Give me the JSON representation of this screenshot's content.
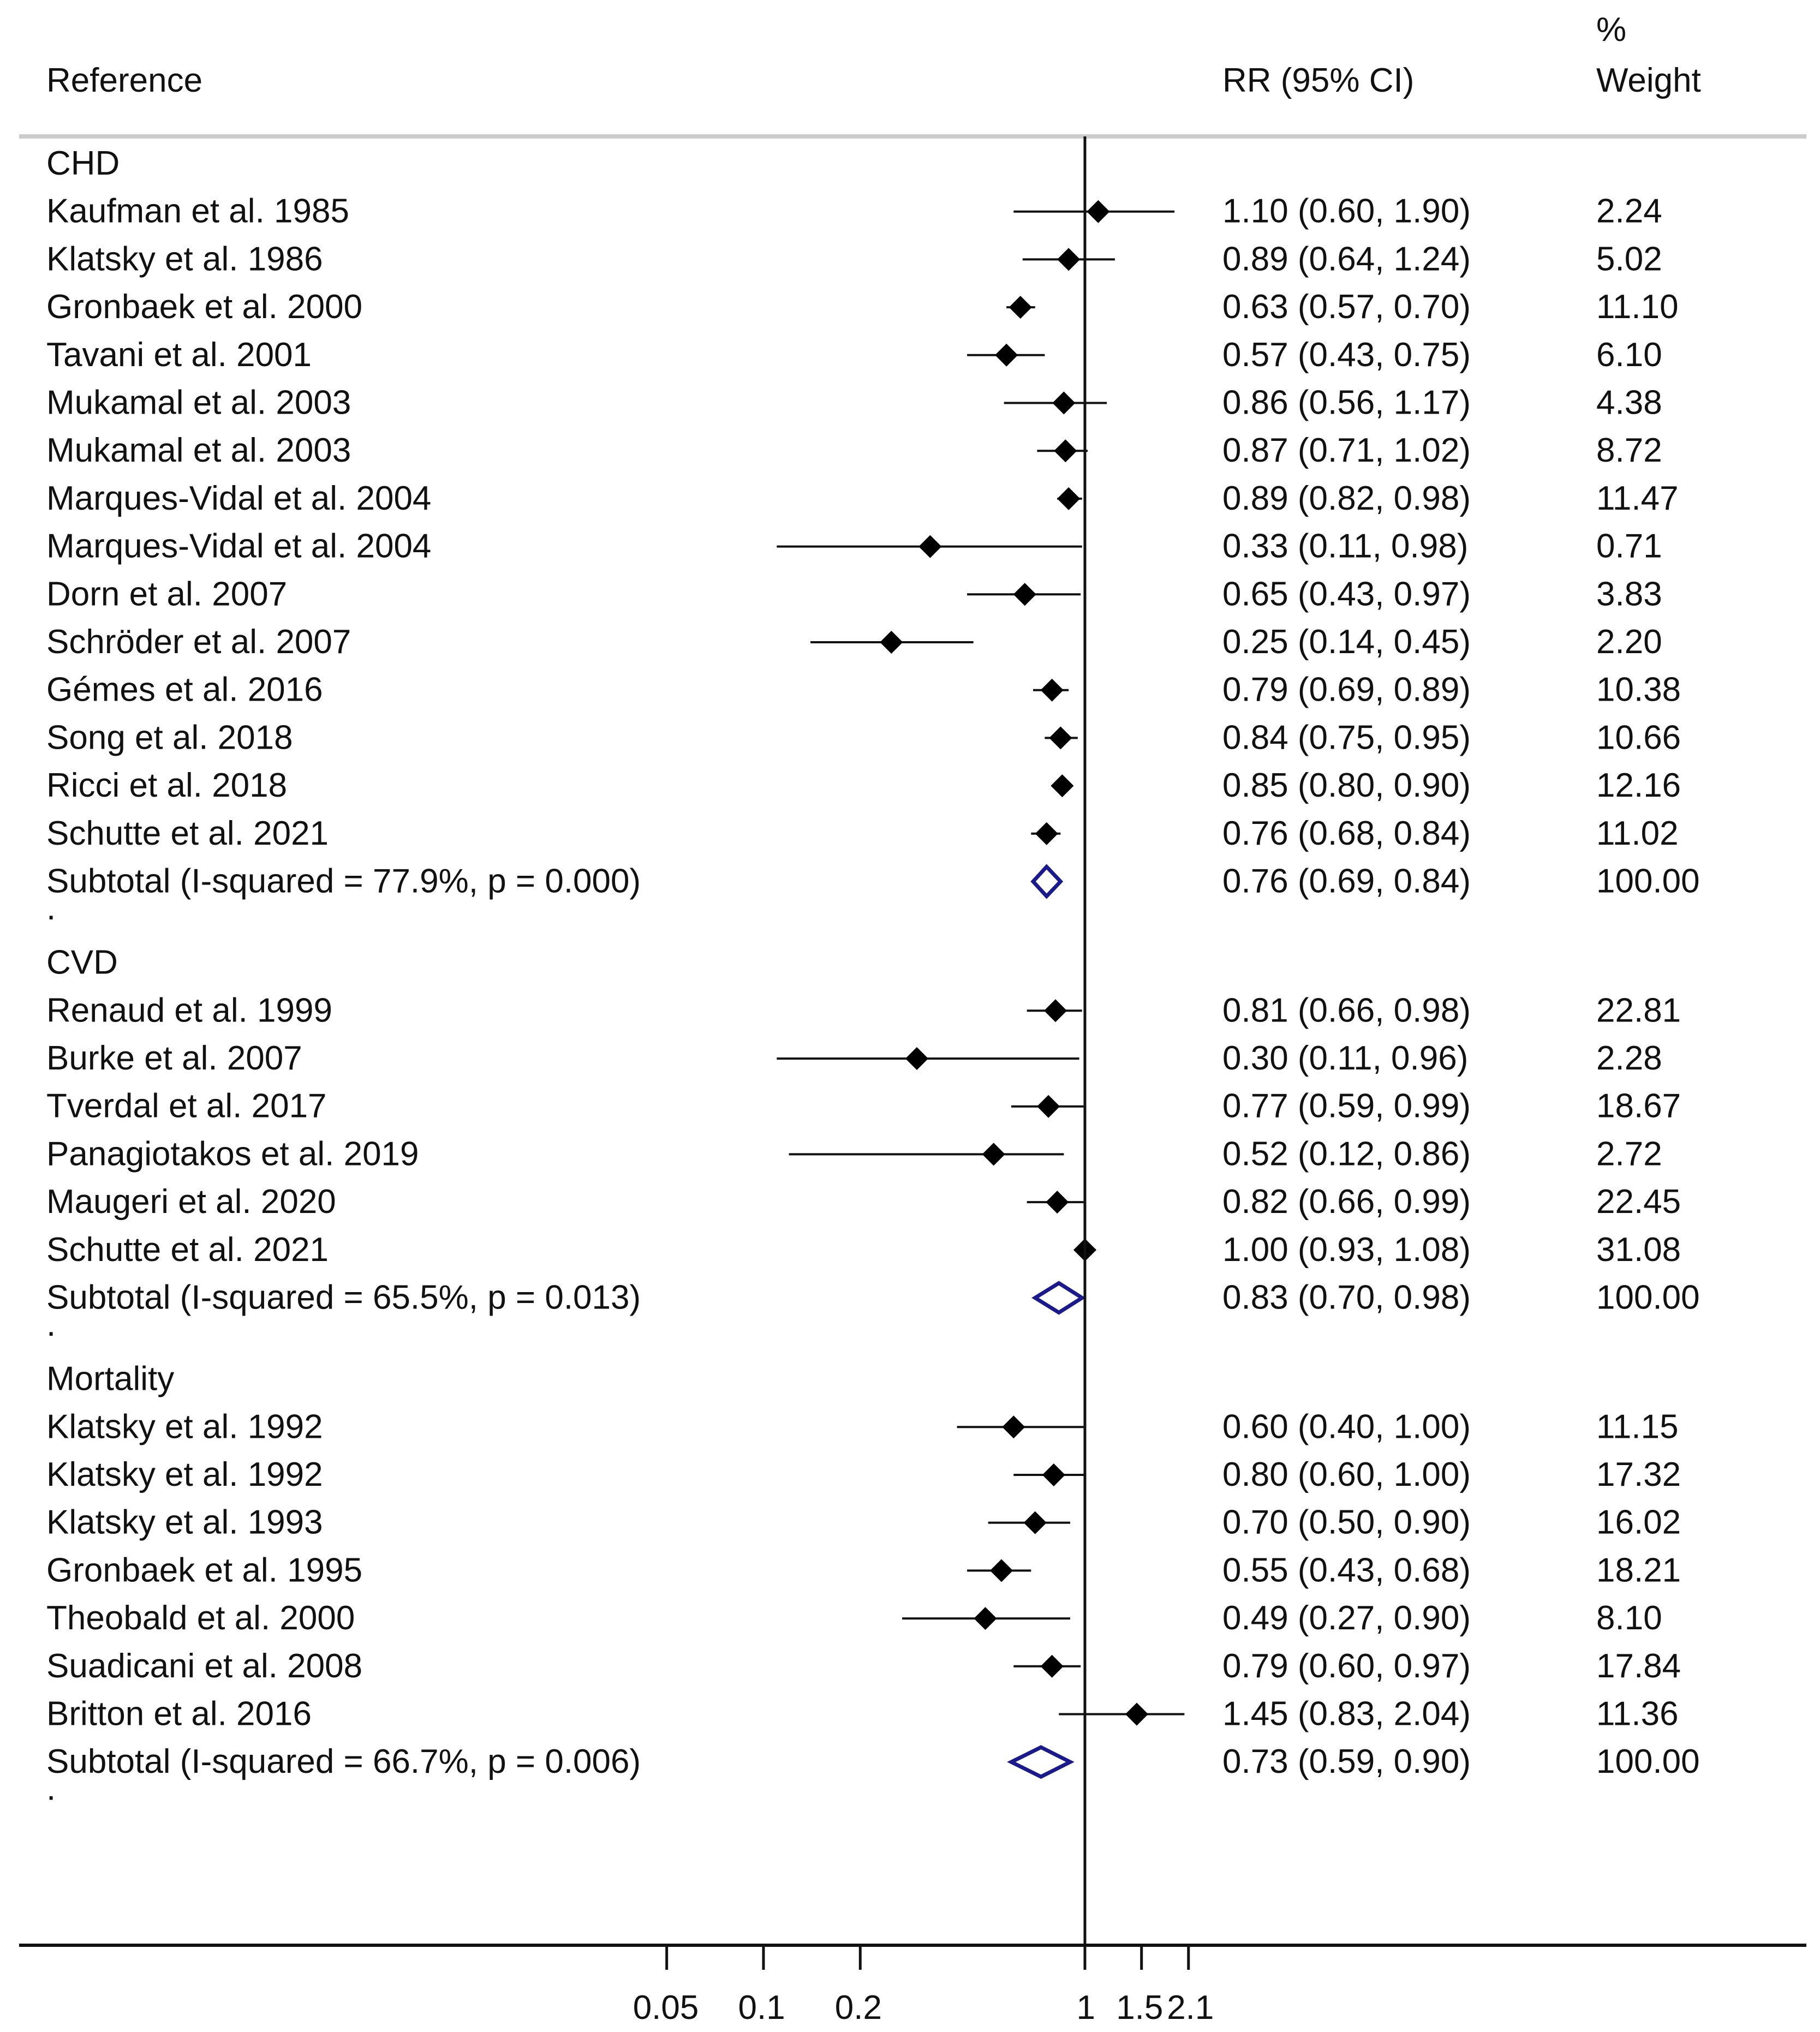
{
  "chart_data": {
    "type": "forest",
    "scale": "log",
    "header": {
      "reference": "Reference",
      "estimate": "RR (95% CI)",
      "weight_line1": "%",
      "weight_line2": "Weight"
    },
    "x_ticks": [
      {
        "value": 0.05,
        "label": "0.05"
      },
      {
        "value": 0.1,
        "label": "0.1"
      },
      {
        "value": 0.2,
        "label": "0.2"
      },
      {
        "value": 1,
        "label": "1"
      },
      {
        "value": 1.5,
        "label": "1.5"
      },
      {
        "value": 2.1,
        "label": "2.1"
      }
    ],
    "null_value": 1,
    "groups": [
      {
        "name": "CHD",
        "studies": [
          {
            "ref": "Kaufman et al. 1985",
            "rr": 1.1,
            "lo": 0.6,
            "hi": 1.9,
            "ci_text": "1.10 (0.60, 1.90)",
            "weight": "2.24"
          },
          {
            "ref": "Klatsky et al. 1986",
            "rr": 0.89,
            "lo": 0.64,
            "hi": 1.24,
            "ci_text": "0.89 (0.64, 1.24)",
            "weight": "5.02"
          },
          {
            "ref": "Gronbaek et al. 2000",
            "rr": 0.63,
            "lo": 0.57,
            "hi": 0.7,
            "ci_text": "0.63 (0.57, 0.70)",
            "weight": "11.10"
          },
          {
            "ref": "Tavani et al. 2001",
            "rr": 0.57,
            "lo": 0.43,
            "hi": 0.75,
            "ci_text": "0.57 (0.43, 0.75)",
            "weight": "6.10"
          },
          {
            "ref": "Mukamal et al. 2003",
            "rr": 0.86,
            "lo": 0.56,
            "hi": 1.17,
            "ci_text": "0.86 (0.56, 1.17)",
            "weight": "4.38"
          },
          {
            "ref": "Mukamal et al. 2003",
            "rr": 0.87,
            "lo": 0.71,
            "hi": 1.02,
            "ci_text": "0.87 (0.71, 1.02)",
            "weight": "8.72"
          },
          {
            "ref": "Marques-Vidal et al. 2004",
            "rr": 0.89,
            "lo": 0.82,
            "hi": 0.98,
            "ci_text": "0.89 (0.82, 0.98)",
            "weight": "11.47"
          },
          {
            "ref": "Marques-Vidal et al. 2004",
            "rr": 0.33,
            "lo": 0.11,
            "hi": 0.98,
            "ci_text": "0.33 (0.11, 0.98)",
            "weight": "0.71"
          },
          {
            "ref": "Dorn et al. 2007",
            "rr": 0.65,
            "lo": 0.43,
            "hi": 0.97,
            "ci_text": "0.65 (0.43, 0.97)",
            "weight": "3.83"
          },
          {
            "ref": "Schröder et al. 2007",
            "rr": 0.25,
            "lo": 0.14,
            "hi": 0.45,
            "ci_text": "0.25 (0.14, 0.45)",
            "weight": "2.20"
          },
          {
            "ref": "Gémes et al. 2016",
            "rr": 0.79,
            "lo": 0.69,
            "hi": 0.89,
            "ci_text": "0.79 (0.69, 0.89)",
            "weight": "10.38"
          },
          {
            "ref": "Song et al. 2018",
            "rr": 0.84,
            "lo": 0.75,
            "hi": 0.95,
            "ci_text": "0.84 (0.75, 0.95)",
            "weight": "10.66"
          },
          {
            "ref": "Ricci et al. 2018",
            "rr": 0.85,
            "lo": 0.8,
            "hi": 0.9,
            "ci_text": "0.85 (0.80, 0.90)",
            "weight": "12.16"
          },
          {
            "ref": "Schutte et al. 2021",
            "rr": 0.76,
            "lo": 0.68,
            "hi": 0.84,
            "ci_text": "0.76 (0.68, 0.84)",
            "weight": "11.02"
          }
        ],
        "subtotal": {
          "label": "Subtotal  (I-squared = 77.9%, p = 0.000)",
          "rr": 0.76,
          "lo": 0.69,
          "hi": 0.84,
          "ci_text": "0.76 (0.69, 0.84)",
          "weight": "100.00"
        }
      },
      {
        "name": "CVD",
        "studies": [
          {
            "ref": "Renaud et al. 1999",
            "rr": 0.81,
            "lo": 0.66,
            "hi": 0.98,
            "ci_text": "0.81 (0.66, 0.98)",
            "weight": "22.81"
          },
          {
            "ref": "Burke et al. 2007",
            "rr": 0.3,
            "lo": 0.11,
            "hi": 0.96,
            "ci_text": "0.30 (0.11, 0.96)",
            "weight": "2.28"
          },
          {
            "ref": "Tverdal et al. 2017",
            "rr": 0.77,
            "lo": 0.59,
            "hi": 0.99,
            "ci_text": "0.77 (0.59, 0.99)",
            "weight": "18.67"
          },
          {
            "ref": "Panagiotakos et al. 2019",
            "rr": 0.52,
            "lo": 0.12,
            "hi": 0.86,
            "ci_text": "0.52 (0.12, 0.86)",
            "weight": "2.72"
          },
          {
            "ref": "Maugeri et al. 2020",
            "rr": 0.82,
            "lo": 0.66,
            "hi": 0.99,
            "ci_text": "0.82 (0.66, 0.99)",
            "weight": "22.45"
          },
          {
            "ref": "Schutte et al. 2021",
            "rr": 1.0,
            "lo": 0.93,
            "hi": 1.08,
            "ci_text": "1.00 (0.93, 1.08)",
            "weight": "31.08"
          }
        ],
        "subtotal": {
          "label": "Subtotal  (I-squared = 65.5%, p = 0.013)",
          "rr": 0.83,
          "lo": 0.7,
          "hi": 0.98,
          "ci_text": "0.83 (0.70, 0.98)",
          "weight": "100.00"
        }
      },
      {
        "name": "Mortality",
        "studies": [
          {
            "ref": "Klatsky et al. 1992",
            "rr": 0.6,
            "lo": 0.4,
            "hi": 1.0,
            "ci_text": "0.60 (0.40, 1.00)",
            "weight": "11.15"
          },
          {
            "ref": "Klatsky et al. 1992",
            "rr": 0.8,
            "lo": 0.6,
            "hi": 1.0,
            "ci_text": "0.80 (0.60, 1.00)",
            "weight": "17.32"
          },
          {
            "ref": "Klatsky et al. 1993",
            "rr": 0.7,
            "lo": 0.5,
            "hi": 0.9,
            "ci_text": "0.70 (0.50, 0.90)",
            "weight": "16.02"
          },
          {
            "ref": "Gronbaek et al. 1995",
            "rr": 0.55,
            "lo": 0.43,
            "hi": 0.68,
            "ci_text": "0.55 (0.43, 0.68)",
            "weight": "18.21"
          },
          {
            "ref": "Theobald et al. 2000",
            "rr": 0.49,
            "lo": 0.27,
            "hi": 0.9,
            "ci_text": "0.49 (0.27, 0.90)",
            "weight": "8.10"
          },
          {
            "ref": "Suadicani et al. 2008",
            "rr": 0.79,
            "lo": 0.6,
            "hi": 0.97,
            "ci_text": "0.79 (0.60, 0.97)",
            "weight": "17.84"
          },
          {
            "ref": "Britton et al. 2016",
            "rr": 1.45,
            "lo": 0.83,
            "hi": 2.04,
            "ci_text": "1.45 (0.83, 2.04)",
            "weight": "11.36"
          }
        ],
        "subtotal": {
          "label": "Subtotal  (I-squared = 66.7%, p = 0.006)",
          "rr": 0.73,
          "lo": 0.59,
          "hi": 0.9,
          "ci_text": "0.73 (0.59, 0.90)",
          "weight": "100.00"
        }
      }
    ],
    "group_separator": ".",
    "colors": {
      "text": "#111111",
      "point": "#000000",
      "line": "#111111",
      "subtotal": "#1a1a8c",
      "rule": "#cccccc"
    }
  }
}
